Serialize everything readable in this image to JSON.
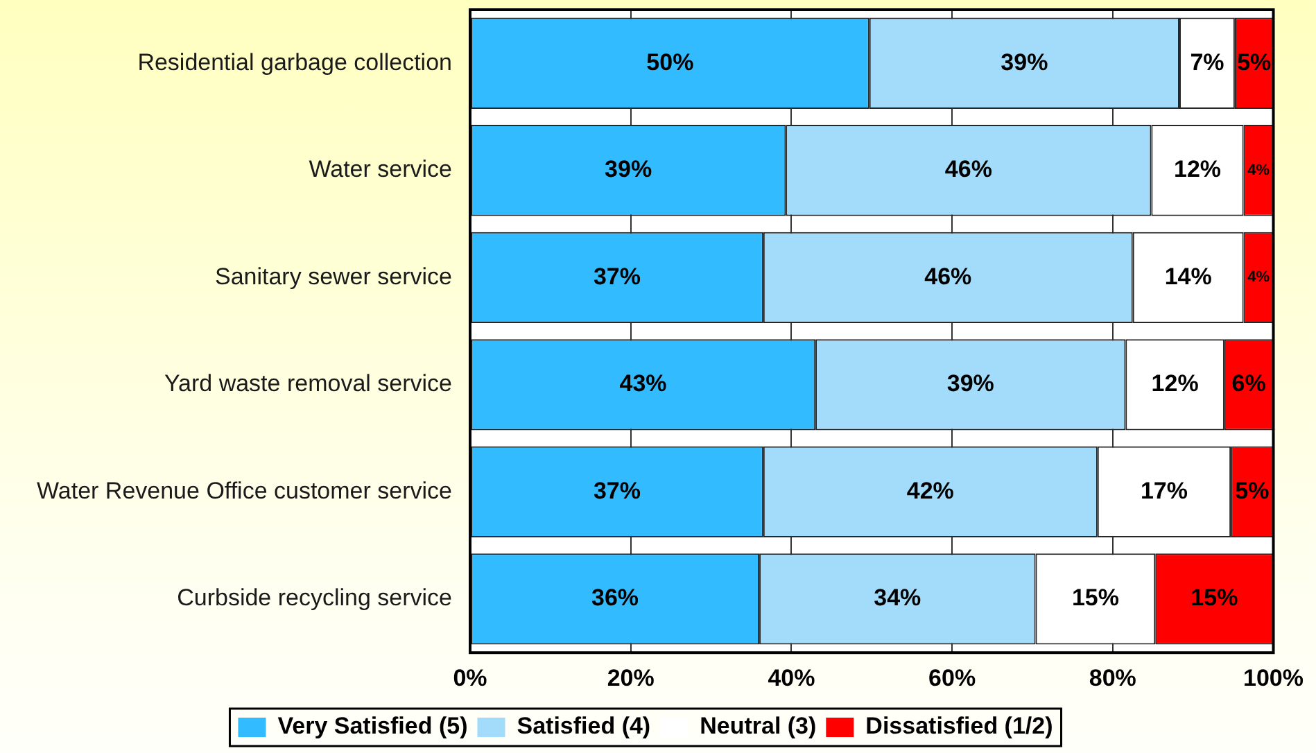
{
  "chart_data": {
    "type": "bar",
    "orientation": "horizontal",
    "stacked": true,
    "categories": [
      "Residential garbage collection",
      "Water service",
      "Sanitary sewer service",
      "Yard waste removal service",
      "Water Revenue Office customer service",
      "Curbside recycling service"
    ],
    "series": [
      {
        "name": "Very Satisfied (5)",
        "color": "#33bbff",
        "values": [
          49.7,
          39.3,
          36.5,
          43.0,
          36.5,
          36.0
        ],
        "value_labels": [
          "50%",
          "39%",
          "37%",
          "43%",
          "37%",
          "36%"
        ]
      },
      {
        "name": "Satisfied (4)",
        "color": "#a3dcfa",
        "values": [
          38.6,
          45.5,
          46.0,
          38.6,
          41.6,
          34.4
        ],
        "value_labels": [
          "39%",
          "46%",
          "46%",
          "39%",
          "42%",
          "34%"
        ]
      },
      {
        "name": "Neutral (3)",
        "color": "#ffffff",
        "values": [
          6.9,
          11.5,
          13.8,
          12.3,
          16.6,
          14.9
        ],
        "value_labels": [
          "7%",
          "12%",
          "14%",
          "12%",
          "17%",
          "15%"
        ]
      },
      {
        "name": "Dissatisfied (1/2)",
        "color": "#ff0000",
        "values": [
          4.8,
          3.7,
          3.7,
          6.1,
          5.3,
          14.7
        ],
        "value_labels": [
          "5%",
          "4%",
          "4%",
          "6%",
          "5%",
          "15%"
        ]
      }
    ],
    "xlim": [
      0,
      100
    ],
    "xticks": [
      {
        "value": 0,
        "label": "0%"
      },
      {
        "value": 20,
        "label": "20%"
      },
      {
        "value": 40,
        "label": "40%"
      },
      {
        "value": 60,
        "label": "60%"
      },
      {
        "value": 80,
        "label": "80%"
      },
      {
        "value": 100,
        "label": "100%"
      }
    ],
    "grid": "x",
    "legend": "bottom"
  }
}
